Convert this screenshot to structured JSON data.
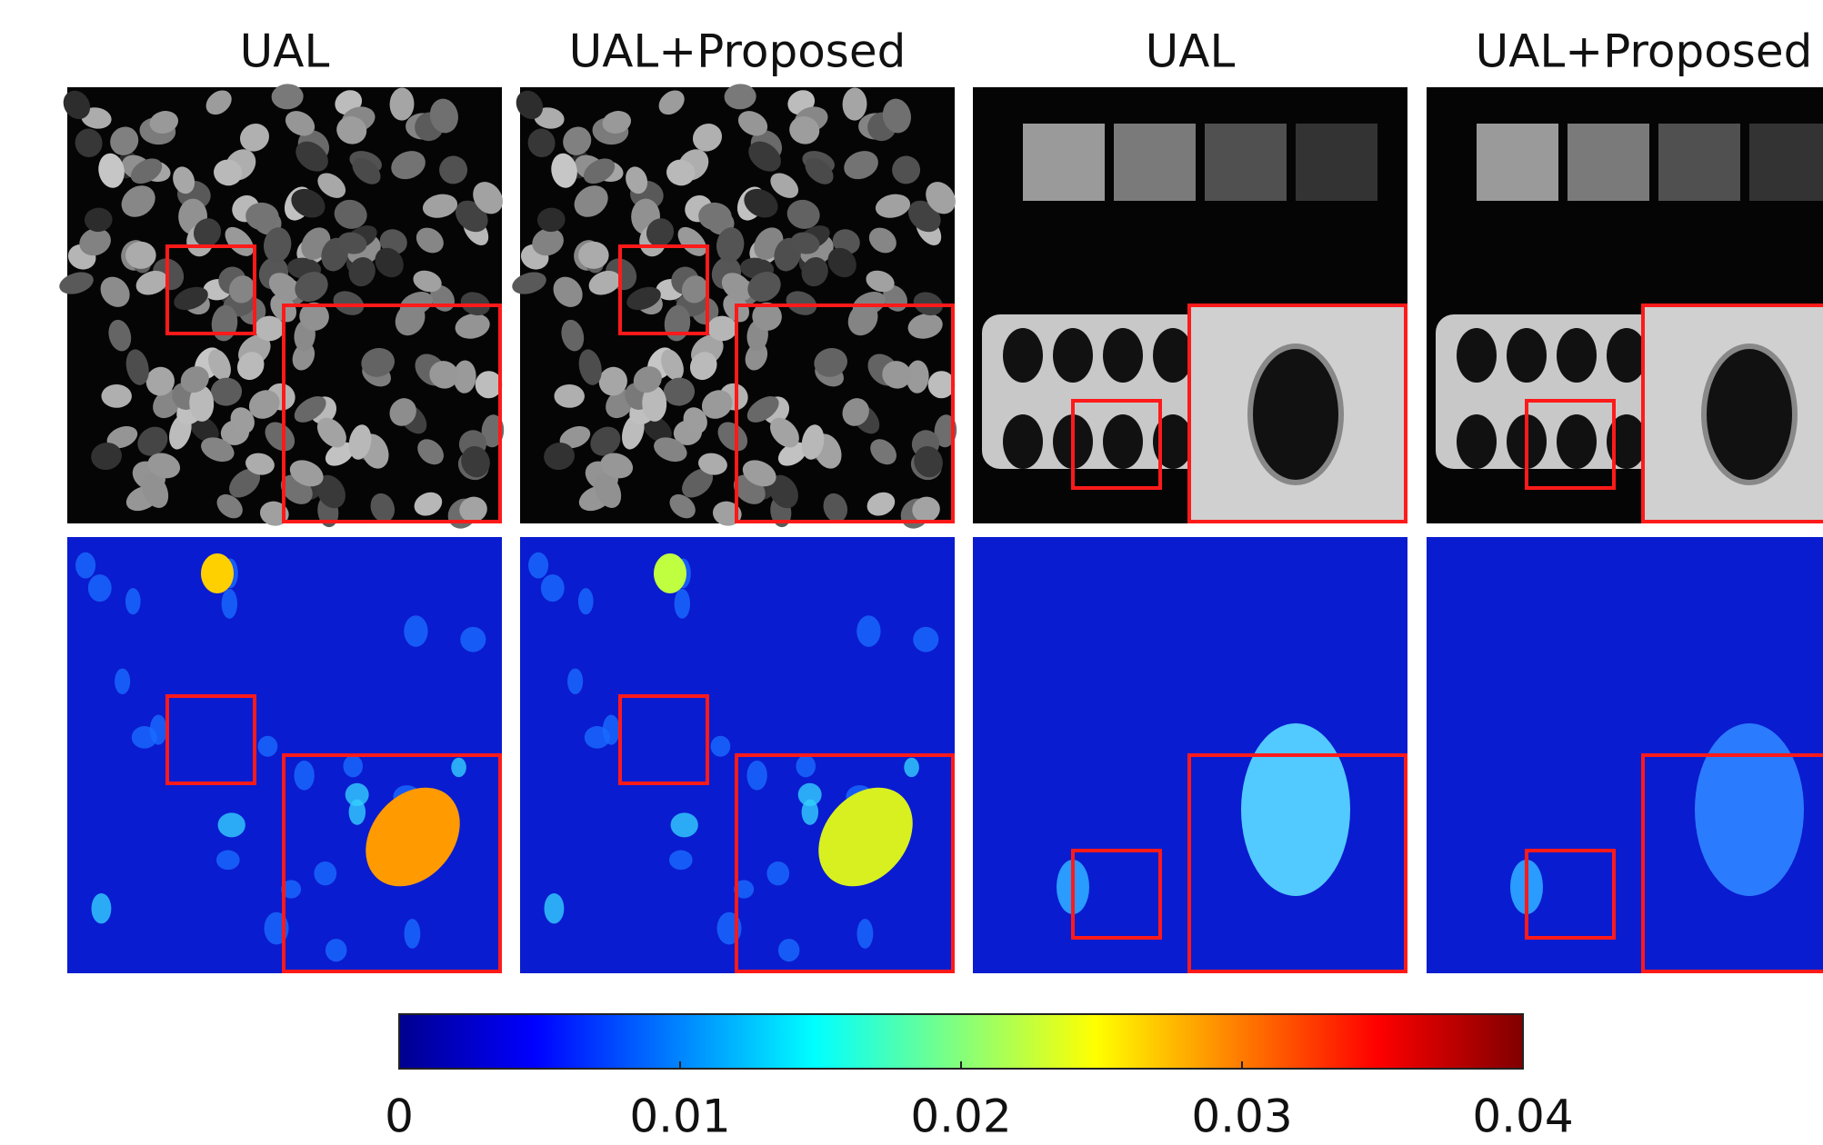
{
  "columns": [
    "UAL",
    "UAL+Proposed",
    "UAL",
    "UAL+Proposed"
  ],
  "colorbar": {
    "range": [
      0,
      0.04
    ],
    "ticks": [
      0,
      0.01,
      0.02,
      0.03,
      0.04
    ]
  }
}
